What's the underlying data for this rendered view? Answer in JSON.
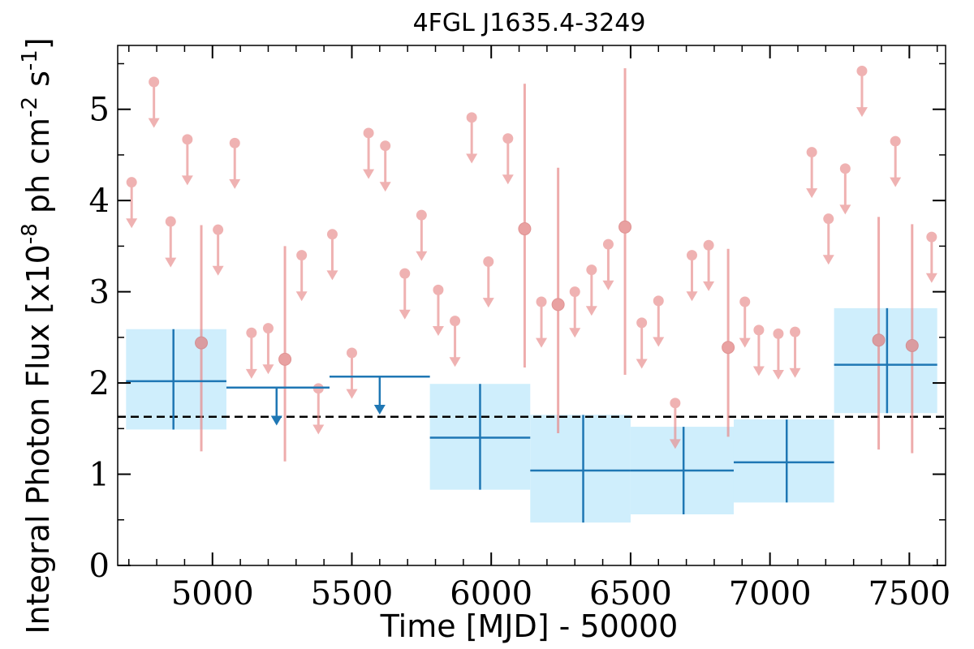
{
  "chart_data": {
    "type": "scatter",
    "title": "4FGL J1635.4-3249",
    "xlabel": "Time [MJD] - 50000",
    "ylabel": "Integral Photon Flux [x10^-8 ph cm^-2 s^-1]",
    "xlim": [
      4660,
      7630
    ],
    "ylim": [
      0,
      5.7
    ],
    "x_ticks": [
      5000,
      5500,
      6000,
      6500,
      7000,
      7500
    ],
    "y_ticks": [
      0,
      1,
      2,
      3,
      4,
      5
    ],
    "grid": false,
    "legend": "none",
    "mean_flux": 1.63,
    "series": [
      {
        "kind": "short-bin upper limits",
        "color": "#e88a8a",
        "points": [
          {
            "x": 4710,
            "y": 4.2
          },
          {
            "x": 4790,
            "y": 5.3
          },
          {
            "x": 4850,
            "y": 3.77
          },
          {
            "x": 4910,
            "y": 4.67
          },
          {
            "x": 5020,
            "y": 3.68
          },
          {
            "x": 5080,
            "y": 4.63
          },
          {
            "x": 5140,
            "y": 2.55
          },
          {
            "x": 5200,
            "y": 2.6
          },
          {
            "x": 5320,
            "y": 3.4
          },
          {
            "x": 5380,
            "y": 1.94
          },
          {
            "x": 5430,
            "y": 3.63
          },
          {
            "x": 5500,
            "y": 2.33
          },
          {
            "x": 5560,
            "y": 4.74
          },
          {
            "x": 5620,
            "y": 4.6
          },
          {
            "x": 5690,
            "y": 3.2
          },
          {
            "x": 5750,
            "y": 3.84
          },
          {
            "x": 5810,
            "y": 3.02
          },
          {
            "x": 5870,
            "y": 2.68
          },
          {
            "x": 5930,
            "y": 4.91
          },
          {
            "x": 5990,
            "y": 3.33
          },
          {
            "x": 6060,
            "y": 4.68
          },
          {
            "x": 6180,
            "y": 2.89
          },
          {
            "x": 6300,
            "y": 3.0
          },
          {
            "x": 6360,
            "y": 3.24
          },
          {
            "x": 6420,
            "y": 3.52
          },
          {
            "x": 6540,
            "y": 2.66
          },
          {
            "x": 6600,
            "y": 2.9
          },
          {
            "x": 6660,
            "y": 1.78
          },
          {
            "x": 6720,
            "y": 3.4
          },
          {
            "x": 6780,
            "y": 3.51
          },
          {
            "x": 6910,
            "y": 2.89
          },
          {
            "x": 6960,
            "y": 2.58
          },
          {
            "x": 7030,
            "y": 2.54
          },
          {
            "x": 7090,
            "y": 2.56
          },
          {
            "x": 7150,
            "y": 4.53
          },
          {
            "x": 7210,
            "y": 3.8
          },
          {
            "x": 7270,
            "y": 4.35
          },
          {
            "x": 7330,
            "y": 5.42
          },
          {
            "x": 7450,
            "y": 4.65
          },
          {
            "x": 7580,
            "y": 3.6
          }
        ]
      },
      {
        "kind": "short-bin detections",
        "color": "#e88a8a",
        "points": [
          {
            "x": 4960,
            "y": 2.44,
            "y_low": 1.25,
            "y_high": 3.73
          },
          {
            "x": 5260,
            "y": 2.26,
            "y_low": 1.14,
            "y_high": 3.5
          },
          {
            "x": 6120,
            "y": 3.69,
            "y_low": 2.17,
            "y_high": 5.28
          },
          {
            "x": 6240,
            "y": 2.86,
            "y_low": 1.45,
            "y_high": 4.36
          },
          {
            "x": 6480,
            "y": 3.71,
            "y_low": 2.09,
            "y_high": 5.45
          },
          {
            "x": 6850,
            "y": 2.39,
            "y_low": 1.41,
            "y_high": 3.47
          },
          {
            "x": 7390,
            "y": 2.47,
            "y_low": 1.27,
            "y_high": 3.82
          },
          {
            "x": 7510,
            "y": 2.41,
            "y_low": 1.23,
            "y_high": 3.74
          }
        ]
      },
      {
        "kind": "long-bin detections",
        "color": "#1f77b4",
        "band_color": "#cfeefc",
        "points": [
          {
            "x": 4860,
            "x_low": 4690,
            "x_high": 5050,
            "y": 2.02,
            "y_low": 1.49,
            "y_high": 2.59
          },
          {
            "x": 5960,
            "x_low": 5780,
            "x_high": 6140,
            "y": 1.4,
            "y_low": 0.83,
            "y_high": 1.99
          },
          {
            "x": 6330,
            "x_low": 6140,
            "x_high": 6500,
            "y": 1.04,
            "y_low": 0.47,
            "y_high": 1.65
          },
          {
            "x": 6690,
            "x_low": 6500,
            "x_high": 6870,
            "y": 1.04,
            "y_low": 0.56,
            "y_high": 1.52
          },
          {
            "x": 7060,
            "x_low": 6870,
            "x_high": 7230,
            "y": 1.13,
            "y_low": 0.69,
            "y_high": 1.6
          },
          {
            "x": 7420,
            "x_low": 7230,
            "x_high": 7600,
            "y": 2.2,
            "y_low": 1.67,
            "y_high": 2.82
          }
        ]
      },
      {
        "kind": "long-bin upper limits",
        "color": "#1f77b4",
        "points": [
          {
            "x": 5230,
            "x_low": 5050,
            "x_high": 5420,
            "y": 1.95
          },
          {
            "x": 5600,
            "x_low": 5420,
            "x_high": 5780,
            "y": 2.07
          }
        ]
      }
    ]
  }
}
